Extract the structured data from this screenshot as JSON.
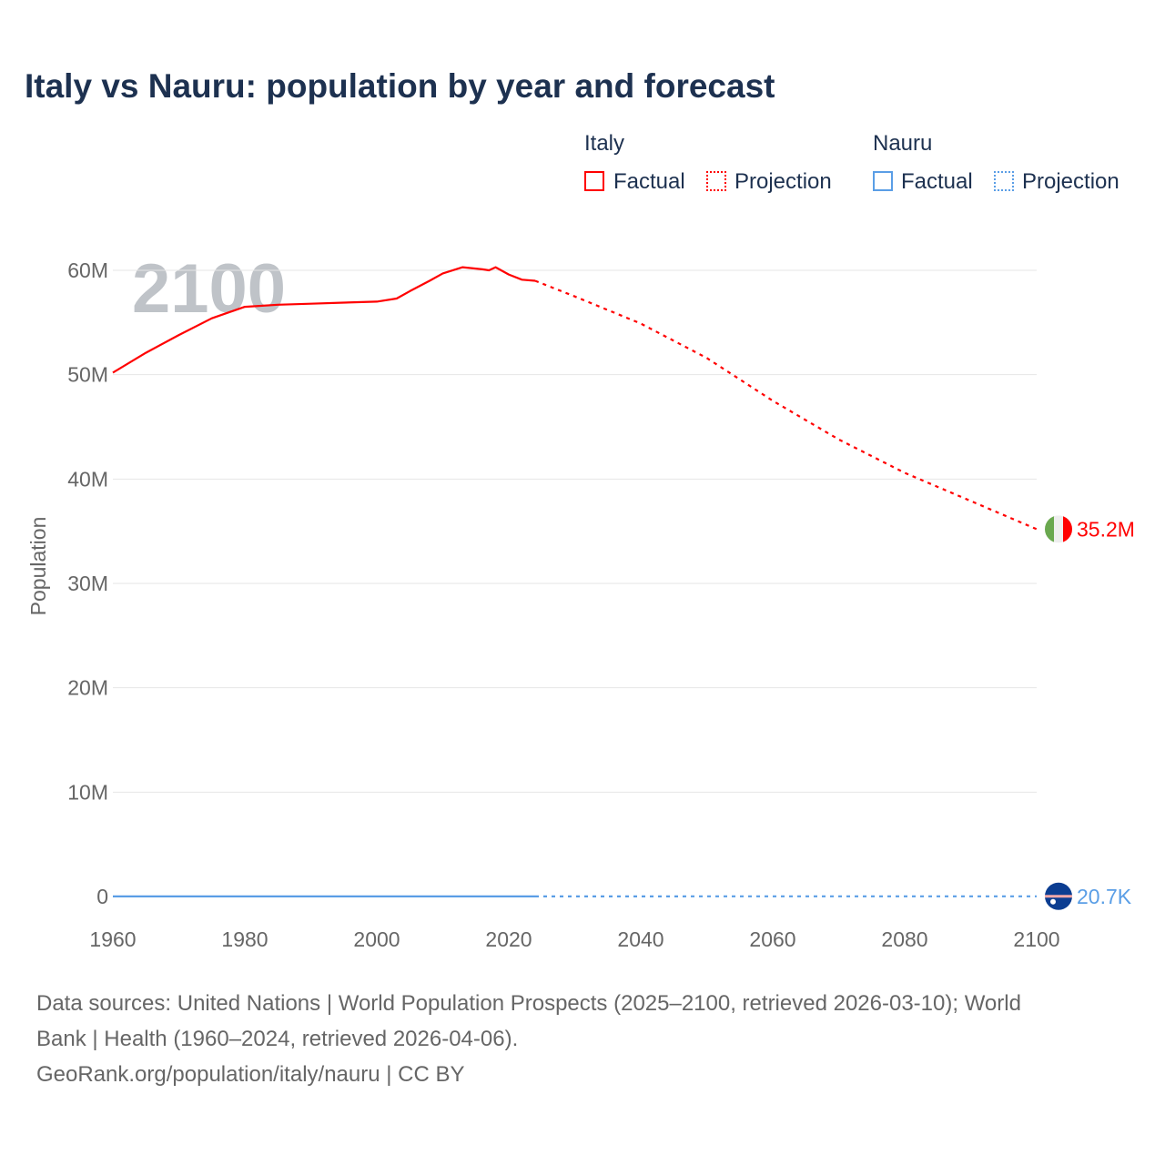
{
  "title": "Italy vs Nauru: population by year and forecast",
  "legend": {
    "groups": [
      {
        "name": "Italy",
        "color": "#ff0000",
        "factual": "Factual",
        "projection": "Projection"
      },
      {
        "name": "Nauru",
        "color": "#5a9ee6",
        "factual": "Factual",
        "projection": "Projection"
      }
    ]
  },
  "year_watermark": "2100",
  "footer": {
    "line1": "Data sources: United Nations | World Population Prospects (2025–2100, retrieved 2026-03-10); World",
    "line2": "Bank | Health (1960–2024, retrieved 2026-04-06).",
    "line3": "GeoRank.org/population/italy/nauru | CC BY"
  },
  "chart_data": {
    "type": "line",
    "title": "Italy vs Nauru: population by year and forecast",
    "xlabel": "",
    "ylabel": "Population",
    "xlim": [
      1960,
      2100
    ],
    "ylim": [
      0,
      60000000
    ],
    "x_ticks": [
      "1960",
      "1980",
      "2000",
      "2020",
      "2040",
      "2060",
      "2080",
      "2100"
    ],
    "y_ticks": [
      "0",
      "10M",
      "20M",
      "30M",
      "40M",
      "50M",
      "60M"
    ],
    "grid": true,
    "legend_position": "top-right",
    "series": [
      {
        "name": "Italy",
        "kind": "Factual",
        "color": "#ff0000",
        "x": [
          1960,
          1965,
          1970,
          1975,
          1980,
          1985,
          1990,
          1995,
          2000,
          2003,
          2005,
          2008,
          2010,
          2013,
          2016,
          2017,
          2018,
          2020,
          2022,
          2024
        ],
        "y": [
          50200000,
          52100000,
          53800000,
          55400000,
          56500000,
          56700000,
          56800000,
          56900000,
          57000000,
          57300000,
          58000000,
          59000000,
          59700000,
          60300000,
          60100000,
          60000000,
          60300000,
          59600000,
          59100000,
          59000000
        ]
      },
      {
        "name": "Italy",
        "kind": "Projection",
        "color": "#ff0000",
        "x": [
          2024,
          2030,
          2040,
          2050,
          2060,
          2070,
          2080,
          2090,
          2100
        ],
        "y": [
          59000000,
          57500000,
          54900000,
          51600000,
          47500000,
          43800000,
          40600000,
          37900000,
          35200000
        ]
      },
      {
        "name": "Nauru",
        "kind": "Factual",
        "color": "#5a9ee6",
        "x": [
          1960,
          1980,
          2000,
          2024
        ],
        "y": [
          4400,
          7600,
          10400,
          12000
        ]
      },
      {
        "name": "Nauru",
        "kind": "Projection",
        "color": "#5a9ee6",
        "x": [
          2024,
          2060,
          2100
        ],
        "y": [
          12000,
          16500,
          20700
        ]
      }
    ],
    "end_labels": [
      {
        "series": "Italy",
        "text": "35.2M",
        "value": 35200000
      },
      {
        "series": "Nauru",
        "text": "20.7K",
        "value": 20700
      }
    ]
  }
}
